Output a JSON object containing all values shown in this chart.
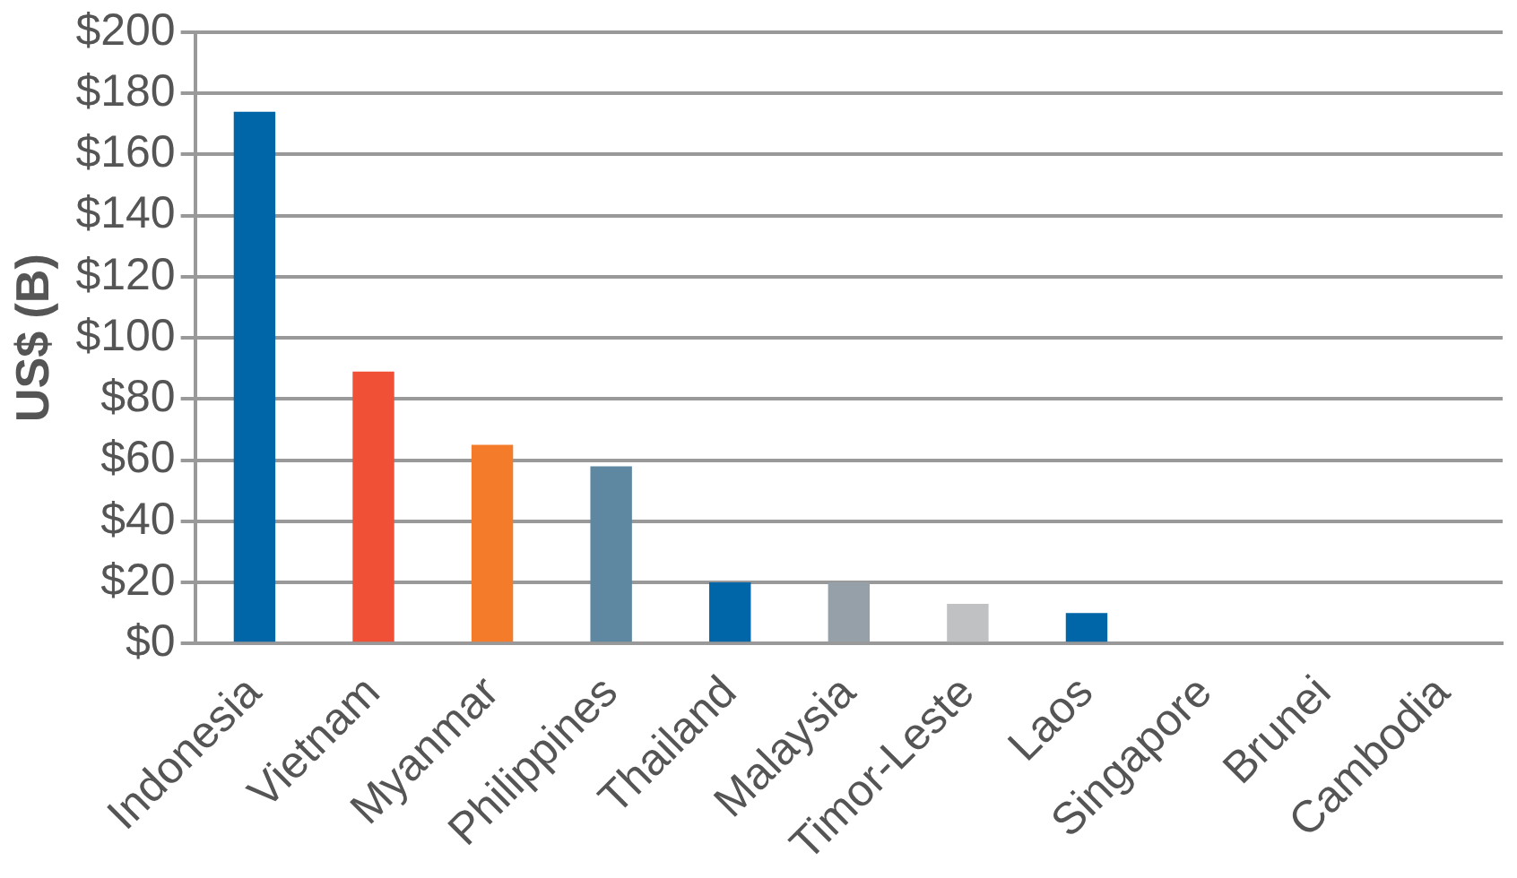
{
  "chart_data": {
    "type": "bar",
    "ylabel": "US$ (B)",
    "categories": [
      "Indonesia",
      "Vietnam",
      "Myanmar",
      "Philippines",
      "Thailand",
      "Malaysia",
      "Timor-Leste",
      "Laos",
      "Singapore",
      "Brunei",
      "Cambodia"
    ],
    "values": [
      174,
      89,
      65,
      58,
      20,
      20,
      13,
      10,
      0,
      0,
      0
    ],
    "colors": [
      "#0066a8",
      "#f05136",
      "#f47b2a",
      "#5e87a1",
      "#0066a8",
      "#96a0a8",
      "#c0c1c2",
      "#0066a8",
      "#0066a8",
      "#0066a8",
      "#0066a8"
    ],
    "ylim": [
      0,
      200
    ],
    "yticks": [
      {
        "value": 0,
        "label": "$0"
      },
      {
        "value": 20,
        "label": "$20"
      },
      {
        "value": 40,
        "label": "$40"
      },
      {
        "value": 60,
        "label": "$60"
      },
      {
        "value": 80,
        "label": "$80"
      },
      {
        "value": 100,
        "label": "$100"
      },
      {
        "value": 120,
        "label": "$120"
      },
      {
        "value": 140,
        "label": "$140"
      },
      {
        "value": 160,
        "label": "$160"
      },
      {
        "value": 180,
        "label": "$180"
      },
      {
        "value": 200,
        "label": "$200"
      }
    ],
    "grid": "y",
    "legend": false
  }
}
